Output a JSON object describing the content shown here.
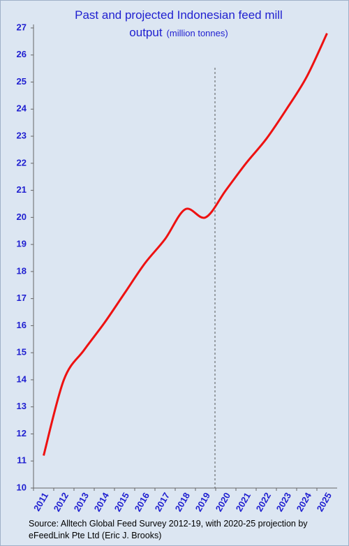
{
  "chart_data": {
    "type": "line",
    "title": "Past and projected Indonesian feed mill output",
    "subtitle": "(million tonnes)",
    "source": "Source: Alltech Global Feed Survey 2012-19, with 2020-25 projection by eFeedLink Pte Ltd (Eric J. Brooks)",
    "categories": [
      "2011",
      "2012",
      "2013",
      "2014",
      "2015",
      "2016",
      "2017",
      "2018",
      "2019",
      "2020",
      "2021",
      "2022",
      "2023",
      "2024",
      "2025"
    ],
    "series": [
      {
        "color": "#ee1111",
        "values": [
          11.2,
          14.0,
          15.1,
          16.1,
          17.2,
          18.3,
          19.2,
          20.3,
          20.0,
          21.0,
          22.0,
          22.9,
          24.0,
          25.2,
          26.8
        ]
      }
    ],
    "ylim": [
      10,
      27
    ],
    "yticks": [
      10,
      11,
      12,
      13,
      14,
      15,
      16,
      17,
      18,
      19,
      20,
      21,
      22,
      23,
      24,
      25,
      26,
      27
    ],
    "grid": false
  }
}
